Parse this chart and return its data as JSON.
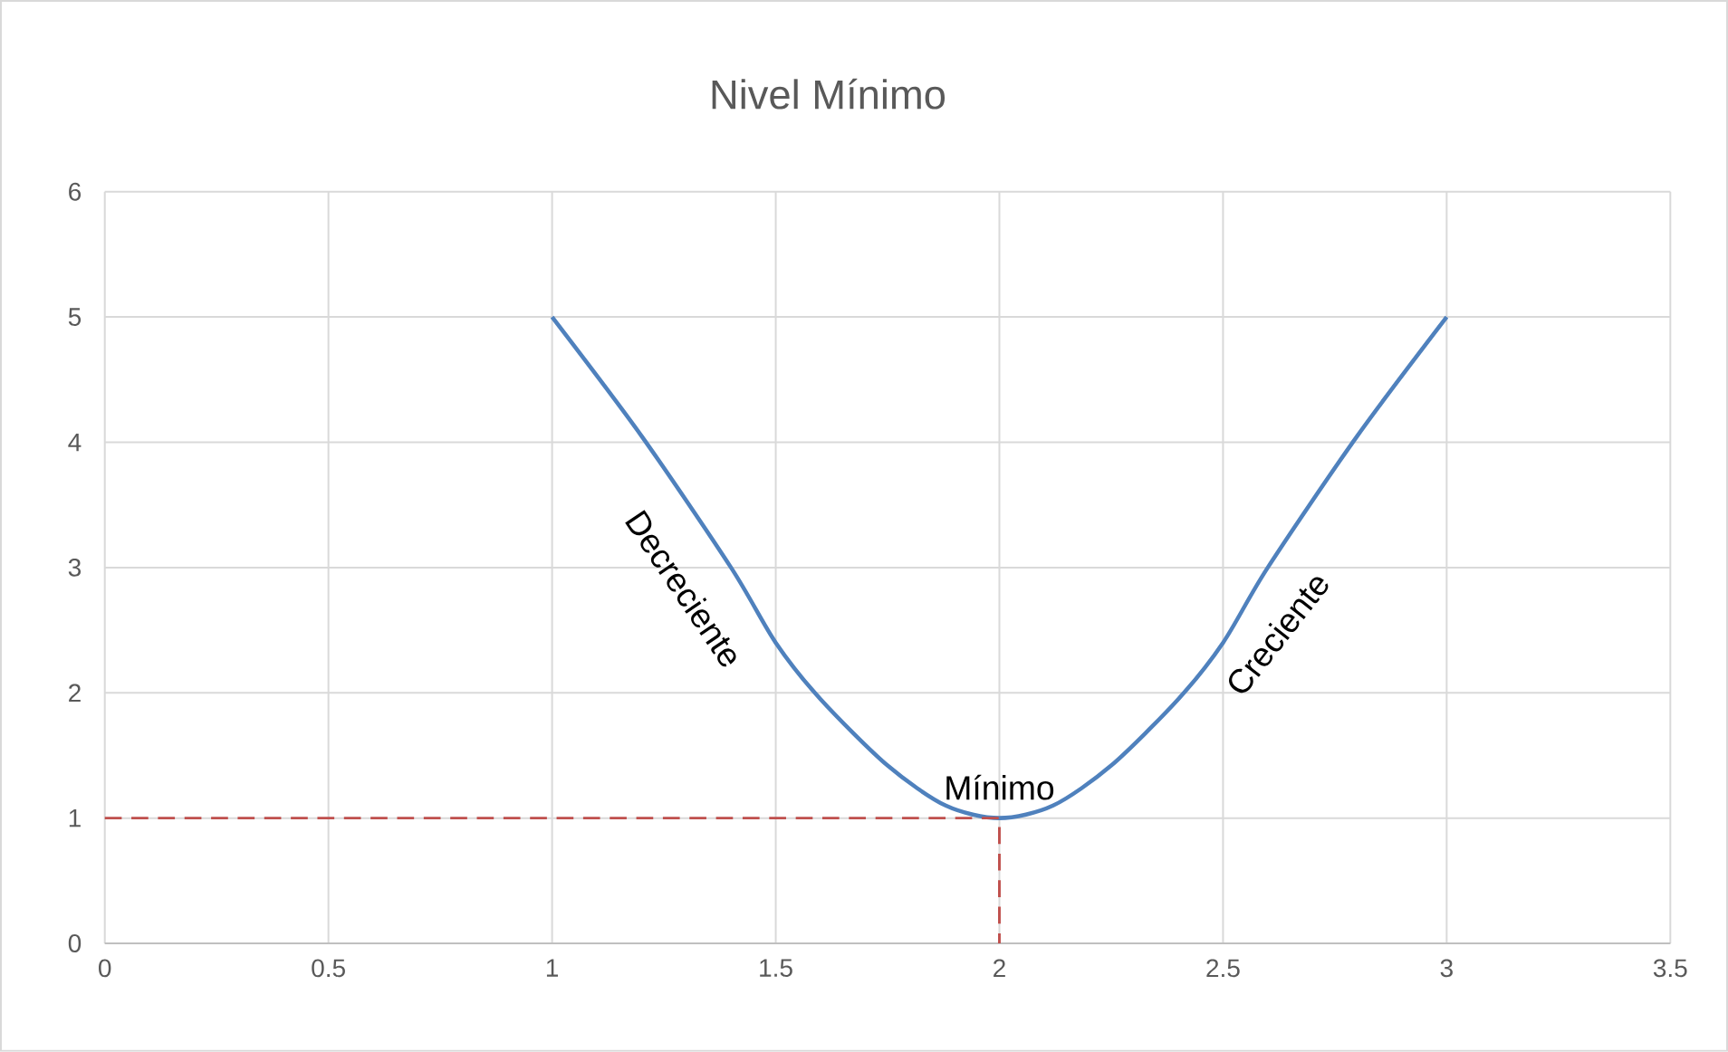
{
  "chart_data": {
    "type": "line",
    "title": "Nivel Mínimo",
    "series": [
      {
        "color": "#4f81bd",
        "x": [
          1,
          1.2,
          1.4,
          1.5,
          1.6,
          1.75,
          1.88,
          2,
          2.12,
          2.25,
          2.4,
          2.5,
          2.6,
          2.8,
          3
        ],
        "values": [
          5,
          4.05,
          3.0,
          2.4,
          1.95,
          1.42,
          1.1,
          1,
          1.1,
          1.42,
          1.95,
          2.4,
          3.0,
          4.05,
          5
        ]
      },
      {
        "type": "line",
        "color": "#c0504d",
        "line_style": "dashed",
        "x": [
          0,
          2,
          2
        ],
        "values": [
          1,
          1,
          0
        ]
      }
    ],
    "annotations": [
      "Decreciente",
      {
        "text": "Mínimo",
        "x": 2,
        "y": 1
      },
      "Creciente"
    ],
    "xlim": [
      0,
      3.5
    ],
    "ylim": [
      0,
      6
    ],
    "xticks": [
      0,
      0.5,
      1,
      1.5,
      2,
      2.5,
      3,
      3.5
    ],
    "yticks": [
      0,
      1,
      2,
      3,
      4,
      5,
      6
    ],
    "grid": true,
    "legend": false,
    "marker": "none"
  }
}
